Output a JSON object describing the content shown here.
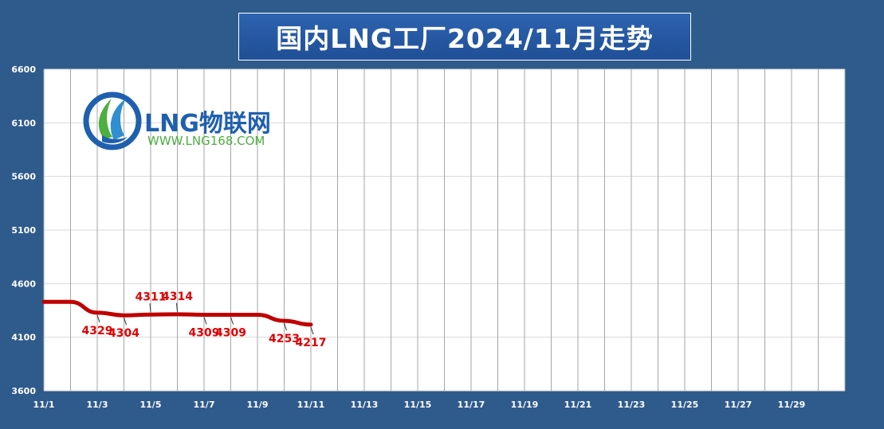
{
  "title": "国内LNG工厂2024/11月走势",
  "watermark": {
    "brand": "LNG物联网",
    "url": "WWW.LNG168.COM"
  },
  "colors": {
    "background": "#2f5a8c",
    "title_bg": "#2357a3",
    "plot_bg": "#ffffff",
    "series_line": "#c00000",
    "data_label": "#e00000",
    "axis_text": "#ffffff",
    "watermark_blue": "#1f5fae",
    "watermark_green": "#4caf3f"
  },
  "chart_data": {
    "type": "line",
    "title": "国内LNG工厂2024/11月走势",
    "xlabel": "",
    "ylabel": "",
    "ylim": [
      3600,
      6600
    ],
    "yticks": [
      3600,
      4100,
      4600,
      5100,
      5600,
      6100,
      6600
    ],
    "xlim": [
      1,
      31
    ],
    "xtick_values": [
      1,
      3,
      5,
      7,
      9,
      11,
      13,
      15,
      17,
      19,
      21,
      23,
      25,
      27,
      29
    ],
    "xtick_labels": [
      "11/1",
      "11/3",
      "11/5",
      "11/7",
      "11/9",
      "11/11",
      "11/13",
      "11/15",
      "11/17",
      "11/19",
      "11/21",
      "11/23",
      "11/25",
      "11/27",
      "11/29"
    ],
    "grid": true,
    "legend": "none",
    "series": [
      {
        "x": [
          1,
          2,
          3,
          4,
          5,
          6,
          7,
          8,
          9,
          10,
          11
        ],
        "values": [
          4430,
          4430,
          4329,
          4304,
          4311,
          4314,
          4309,
          4309,
          4309,
          4253,
          4217
        ]
      }
    ],
    "data_labels": [
      {
        "x": 3,
        "value": "4329",
        "placement": "below"
      },
      {
        "x": 4,
        "value": "4304",
        "placement": "below"
      },
      {
        "x": 5,
        "value": "4311",
        "placement": "above"
      },
      {
        "x": 6,
        "value": "4314",
        "placement": "above"
      },
      {
        "x": 7,
        "value": "4309",
        "placement": "below"
      },
      {
        "x": 8,
        "value": "4309",
        "placement": "below"
      },
      {
        "x": 10,
        "value": "4253",
        "placement": "below"
      },
      {
        "x": 11,
        "value": "4217",
        "placement": "below"
      }
    ]
  }
}
